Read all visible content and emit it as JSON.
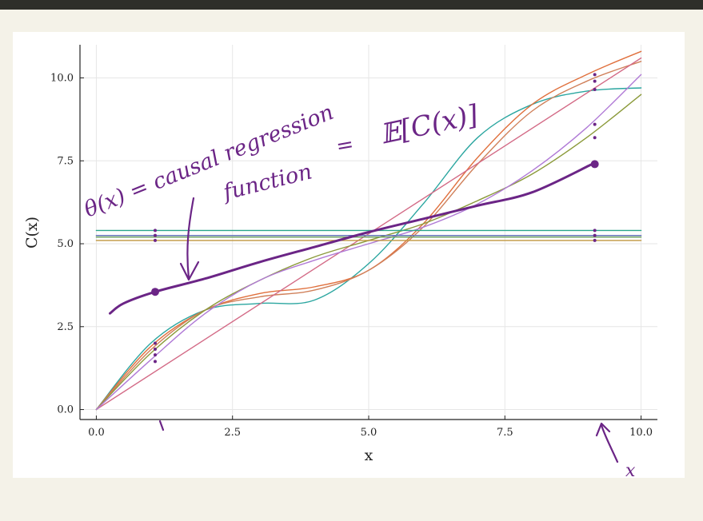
{
  "chart_data": {
    "type": "line",
    "title": "",
    "xlabel": "x",
    "ylabel": "C(x)",
    "xlim": [
      -0.3,
      10.3
    ],
    "ylim": [
      -0.3,
      11.0
    ],
    "xticks": [
      "0.0",
      "2.5",
      "5.0",
      "7.5",
      "10.0"
    ],
    "yticks": [
      "0.0",
      "2.5",
      "5.0",
      "7.5",
      "10.0"
    ],
    "grid": true,
    "legend": "none",
    "series": [
      {
        "color": "#2ba6a0",
        "x": [
          0,
          1,
          2,
          3,
          4,
          5,
          6,
          7,
          8,
          9,
          10
        ],
        "y": [
          0,
          2.0,
          3.0,
          3.2,
          3.3,
          4.4,
          6.2,
          8.2,
          9.2,
          9.6,
          9.7
        ]
      },
      {
        "color": "#e0703d",
        "x": [
          0,
          1,
          2,
          3,
          4,
          5,
          6,
          7,
          8,
          9,
          10
        ],
        "y": [
          0,
          1.9,
          3.0,
          3.5,
          3.7,
          4.2,
          5.6,
          7.6,
          9.2,
          10.1,
          10.8
        ]
      },
      {
        "color": "#d0805a",
        "x": [
          0,
          1,
          2,
          3,
          4,
          5,
          6,
          7,
          8,
          9,
          10
        ],
        "y": [
          0,
          1.8,
          3.0,
          3.4,
          3.6,
          4.2,
          5.5,
          7.4,
          9.0,
          9.9,
          10.5
        ]
      },
      {
        "color": "#d36a86",
        "x": [
          0,
          10
        ],
        "y": [
          0,
          10.6
        ]
      },
      {
        "color": "#8b9a3a",
        "x": [
          0,
          1,
          2,
          3,
          4,
          5,
          6,
          7,
          8,
          9,
          10
        ],
        "y": [
          0,
          1.7,
          3.0,
          3.9,
          4.6,
          5.1,
          5.6,
          6.3,
          7.1,
          8.2,
          9.5
        ]
      },
      {
        "color": "#b07ad6",
        "x": [
          0,
          1,
          2,
          3,
          4,
          5,
          6,
          7,
          8,
          9,
          10
        ],
        "y": [
          0,
          1.5,
          2.9,
          3.9,
          4.5,
          5.0,
          5.5,
          6.2,
          7.2,
          8.5,
          10.1
        ]
      },
      {
        "color": "#2aa68a",
        "x": [
          0,
          10
        ],
        "y": [
          5.4,
          5.4
        ]
      },
      {
        "color": "#5e6fb5",
        "x": [
          0,
          10
        ],
        "y": [
          5.25,
          5.25
        ]
      },
      {
        "color": "#6aa05a",
        "x": [
          0,
          10
        ],
        "y": [
          5.2,
          5.2
        ]
      },
      {
        "color": "#c0963e",
        "x": [
          0,
          10
        ],
        "y": [
          5.1,
          5.1
        ]
      },
      {
        "color": "#6b2586",
        "x": [
          0.25,
          0.5,
          1.08,
          2,
          3,
          4,
          5,
          6,
          7,
          8,
          9.1
        ],
        "y": [
          2.9,
          3.2,
          3.55,
          3.95,
          4.45,
          4.9,
          5.35,
          5.75,
          6.15,
          6.55,
          7.4
        ]
      }
    ],
    "markers": [
      {
        "x": 1.08,
        "y": 3.55,
        "color": "#6b2586"
      },
      {
        "x": 9.15,
        "y": 7.4,
        "color": "#6b2586"
      }
    ]
  },
  "annotations": {
    "theta_def": "θ(x) = causal regression",
    "theta_def_line2": "function",
    "equals": "=",
    "expectation": "𝔼[C(x)]",
    "x_mark": "x"
  }
}
